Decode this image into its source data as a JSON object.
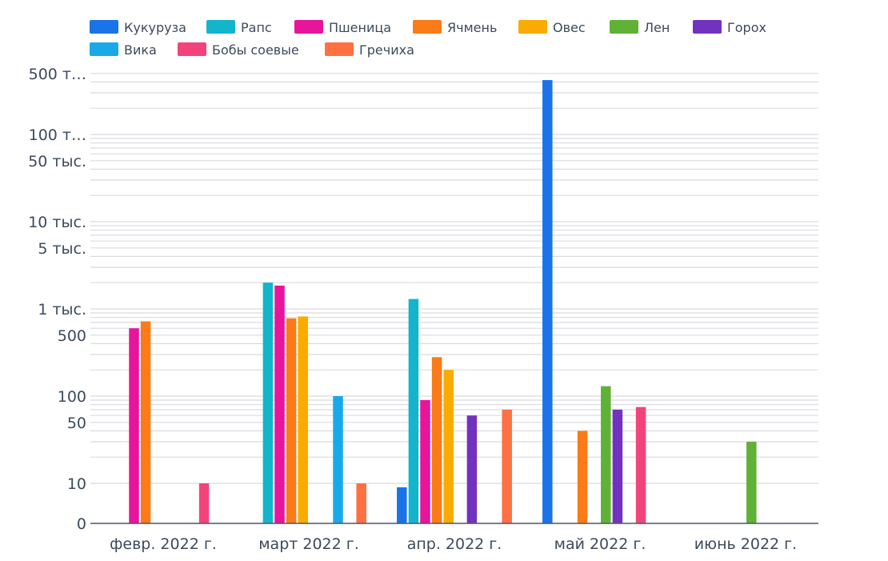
{
  "chart_data": {
    "type": "bar",
    "title": "",
    "xlabel": "",
    "ylabel": "",
    "yscale": "log-like",
    "categories": [
      "февр. 2022 г.",
      "март 2022 г.",
      "апр. 2022 г.",
      "май 2022 г.",
      "июнь 2022 г."
    ],
    "y_ticks": [
      {
        "value": 0,
        "label": "0"
      },
      {
        "value": 10,
        "label": "10"
      },
      {
        "value": 50,
        "label": "50"
      },
      {
        "value": 100,
        "label": "100"
      },
      {
        "value": 500,
        "label": "500"
      },
      {
        "value": 1000,
        "label": "1 тыс."
      },
      {
        "value": 5000,
        "label": "5 тыс."
      },
      {
        "value": 10000,
        "label": "10 тыс."
      },
      {
        "value": 50000,
        "label": "50 тыс."
      },
      {
        "value": 100000,
        "label": "100 т…"
      },
      {
        "value": 500000,
        "label": "500 т…"
      }
    ],
    "series": [
      {
        "name": "Кукуруза",
        "color": "#1a73e8",
        "values": [
          null,
          null,
          8,
          420000,
          null
        ]
      },
      {
        "name": "Рапс",
        "color": "#12b5cb",
        "values": [
          null,
          2000,
          1300,
          null,
          null
        ]
      },
      {
        "name": "Пшеница",
        "color": "#e8149b",
        "values": [
          600,
          1850,
          90,
          null,
          null
        ]
      },
      {
        "name": "Ячмень",
        "color": "#fa7b17",
        "values": [
          720,
          780,
          280,
          40,
          null
        ]
      },
      {
        "name": "Овес",
        "color": "#f9ab00",
        "values": [
          null,
          820,
          200,
          null,
          null
        ]
      },
      {
        "name": "Лен",
        "color": "#5fb236",
        "values": [
          null,
          null,
          null,
          130,
          30
        ]
      },
      {
        "name": "Горох",
        "color": "#7232c0",
        "values": [
          null,
          null,
          60,
          70,
          null
        ]
      },
      {
        "name": "Вика",
        "color": "#1aa9e8",
        "values": [
          null,
          100,
          null,
          null,
          null
        ]
      },
      {
        "name": "Бобы соевые",
        "color": "#f2447a",
        "values": [
          10,
          null,
          null,
          75,
          null
        ]
      },
      {
        "name": "Гречиха",
        "color": "#ff7043",
        "values": [
          null,
          10,
          70,
          null,
          null
        ]
      }
    ],
    "legend_position": "top-left",
    "grid": true
  }
}
